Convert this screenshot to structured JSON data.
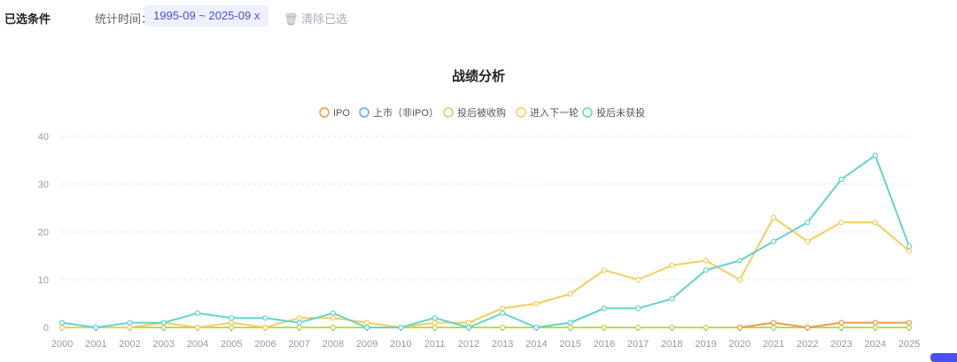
{
  "filters": {
    "label": "已选条件",
    "time_label": "统计时间：",
    "chip": "1995-09 ~ 2025-09 x",
    "clear": "清除已选"
  },
  "chart_data": {
    "type": "line",
    "title": "战绩分析",
    "legend_position": "top-center",
    "grid": true,
    "ylim": [
      0,
      40
    ],
    "yticks": [
      "0",
      "10",
      "20",
      "30",
      "40"
    ],
    "categories": [
      "2000",
      "2001",
      "2002",
      "2003",
      "2004",
      "2005",
      "2006",
      "2007",
      "2008",
      "2009",
      "2010",
      "2011",
      "2012",
      "2013",
      "2014",
      "2015",
      "2016",
      "2017",
      "2018",
      "2019",
      "2020",
      "2021",
      "2022",
      "2023",
      "2024",
      "2025"
    ],
    "series": [
      {
        "name": "IPO",
        "color": "#f29a4b",
        "start": 20,
        "values": [
          0,
          0,
          0,
          0,
          0,
          0,
          0,
          0,
          0,
          0,
          0,
          0,
          0,
          0,
          0,
          0,
          0,
          0,
          0,
          0,
          0,
          1,
          0,
          1,
          1,
          1
        ]
      },
      {
        "name": "上市（非IPO）",
        "color": "#5aa9f0",
        "values": [
          0,
          0,
          0,
          0,
          0,
          0,
          0,
          0,
          0,
          0,
          0,
          0,
          0,
          0,
          0,
          0,
          0,
          0,
          0,
          0,
          0,
          0,
          0,
          0,
          0,
          0
        ]
      },
      {
        "name": "投后被收购",
        "color": "#b8dc4c",
        "values": [
          0,
          0,
          0,
          0,
          0,
          0,
          0,
          0,
          0,
          0,
          0,
          0,
          0,
          0,
          0,
          0,
          0,
          0,
          0,
          0,
          0,
          0,
          0,
          0,
          0,
          0
        ]
      },
      {
        "name": "进入下一轮",
        "color": "#f5cd5c",
        "values": [
          0,
          0,
          0,
          1,
          0,
          1,
          0,
          2,
          2,
          1,
          0,
          1,
          1,
          4,
          5,
          7,
          12,
          10,
          13,
          14,
          10,
          23,
          18,
          22,
          22,
          16
        ]
      },
      {
        "name": "投后未获投",
        "color": "#62d3cf",
        "values": [
          1,
          0,
          1,
          1,
          3,
          2,
          2,
          1,
          3,
          0,
          0,
          2,
          0,
          3,
          0,
          1,
          4,
          4,
          6,
          12,
          14,
          18,
          22,
          31,
          36,
          17
        ]
      }
    ]
  }
}
